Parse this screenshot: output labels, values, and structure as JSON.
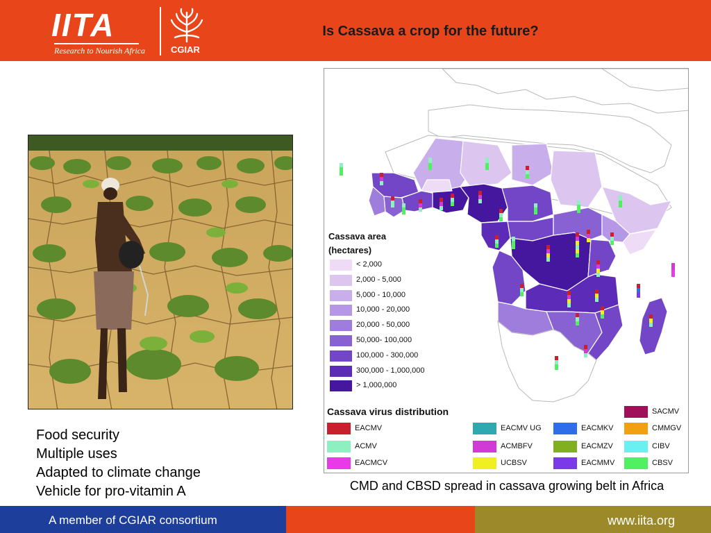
{
  "header": {
    "logo_wordmark": "IITA",
    "logo_tagline": "Research to Nourish Africa",
    "partner_logo": "CGIAR",
    "title": "Is Cassava a crop for the future?",
    "background_color": "#e8461a"
  },
  "photo": {
    "icon": "farmer-watering-cassava-photo"
  },
  "bullets": [
    "Food security",
    "Multiple uses",
    "Adapted to climate change",
    "Vehicle for pro-vitamin A"
  ],
  "map": {
    "area_legend": {
      "title_line1": "Cassava area",
      "title_line2": "(hectares)",
      "classes": [
        {
          "label": "< 2,000",
          "color": "#eedcf6"
        },
        {
          "label": "2,000 - 5,000",
          "color": "#dcc6f0"
        },
        {
          "label": "5,000 - 10,000",
          "color": "#c9aeec"
        },
        {
          "label": "10,000 - 20,000",
          "color": "#b696e6"
        },
        {
          "label": "20,000 - 50,000",
          "color": "#9f7ddd"
        },
        {
          "label": "50,000- 100,000",
          "color": "#8862d2"
        },
        {
          "label": "100,000 - 300,000",
          "color": "#7246c6"
        },
        {
          "label": "300,000 - 1,000,000",
          "color": "#5c2cb8"
        },
        {
          "label": "> 1,000,000",
          "color": "#45179e"
        }
      ]
    },
    "virus_legend": {
      "title": "Cassava virus distribution",
      "items": [
        {
          "label": "EACMV",
          "color": "#c8202c"
        },
        {
          "label": "ACMV",
          "color": "#8ef0c0"
        },
        {
          "label": "EACMCV",
          "color": "#e83ae8"
        },
        {
          "label": "EACMV UG",
          "color": "#2fa8b0"
        },
        {
          "label": "ACMBFV",
          "color": "#d23ad8"
        },
        {
          "label": "UCBSV",
          "color": "#f0f020"
        },
        {
          "label": "EACMKV",
          "color": "#2e6ee8"
        },
        {
          "label": "EACMZV",
          "color": "#80b020"
        },
        {
          "label": "EACMMV",
          "color": "#7a3ae8"
        },
        {
          "label": "SACMV",
          "color": "#a0105a"
        },
        {
          "label": "CMMGV",
          "color": "#f0a010"
        },
        {
          "label": "CIBV",
          "color": "#6af0f0"
        },
        {
          "label": "CBSV",
          "color": "#50f060"
        }
      ]
    }
  },
  "caption": "CMD and CBSD spread in cassava growing belt in Africa",
  "footer": {
    "member_text": "A member of CGIAR consortium",
    "url": "www.iita.org"
  }
}
